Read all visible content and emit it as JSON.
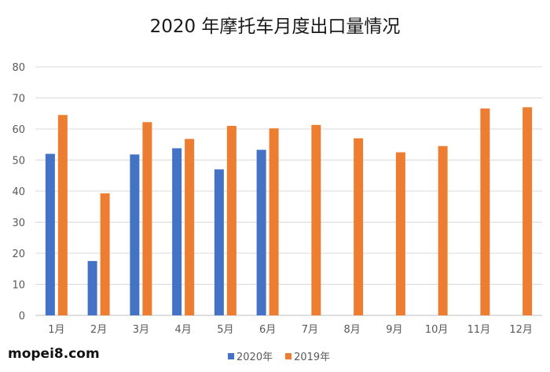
{
  "chart_data": {
    "type": "bar",
    "title": "2020 年摩托车月度出口量情况",
    "categories": [
      "1月",
      "2月",
      "3月",
      "4月",
      "5月",
      "6月",
      "7月",
      "8月",
      "9月",
      "10月",
      "11月",
      "12月"
    ],
    "series": [
      {
        "name": "2020年",
        "color": "#4472C4",
        "values": [
          52,
          17.5,
          51.8,
          53.8,
          47,
          53.3,
          null,
          null,
          null,
          null,
          null,
          null
        ]
      },
      {
        "name": "2019年",
        "color": "#ED7D31",
        "values": [
          64.5,
          39.3,
          62.2,
          56.8,
          61,
          60.2,
          61.3,
          57,
          52.5,
          54.5,
          66.6,
          67
        ]
      }
    ],
    "ylim": [
      0,
      80
    ],
    "yticks": [
      0,
      10,
      20,
      30,
      40,
      50,
      60,
      70,
      80
    ],
    "grid": true,
    "legend": "bottom"
  },
  "watermark": "mopei8.com"
}
